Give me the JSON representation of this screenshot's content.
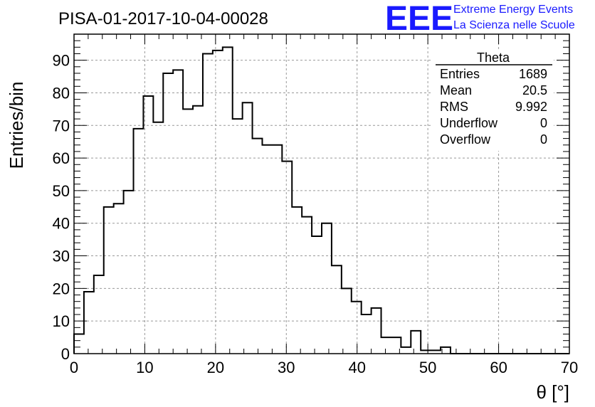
{
  "header": {
    "run_title": "PISA-01-2017-10-04-00028",
    "logo_mark": "EEE",
    "logo_line1": "Extreme Energy Events",
    "logo_line2": "La Scienza nelle Scuole",
    "logo_color": "#1a1aff"
  },
  "stats": {
    "title": "Theta",
    "rows": [
      {
        "label": "Entries",
        "value": "1689"
      },
      {
        "label": "Mean",
        "value": "20.5"
      },
      {
        "label": "RMS",
        "value": "9.992"
      },
      {
        "label": "Underflow",
        "value": "0"
      },
      {
        "label": "Overflow",
        "value": "0"
      }
    ]
  },
  "chart_data": {
    "type": "bar",
    "histogram": true,
    "title": "PISA-01-2017-10-04-00028",
    "xlabel": "θ [°]",
    "ylabel": "Entries/bin",
    "xlim": [
      0,
      70
    ],
    "ylim": [
      0,
      98
    ],
    "bin_width": 1.4,
    "x_ticks": [
      0,
      10,
      20,
      30,
      40,
      50,
      60,
      70
    ],
    "y_ticks": [
      0,
      10,
      20,
      30,
      40,
      50,
      60,
      70,
      80,
      90
    ],
    "grid": true,
    "bin_edges_start": 0,
    "values": [
      6,
      19,
      24,
      45,
      46,
      50,
      69,
      79,
      71,
      86,
      87,
      75,
      76,
      92,
      93,
      94,
      72,
      77,
      66,
      64,
      64,
      59,
      45,
      42,
      36,
      40,
      27,
      20,
      16,
      12,
      14,
      5,
      5,
      2,
      7,
      1,
      1,
      2,
      0,
      0,
      0,
      0,
      0,
      0,
      0,
      0,
      0,
      0,
      0,
      0
    ]
  }
}
